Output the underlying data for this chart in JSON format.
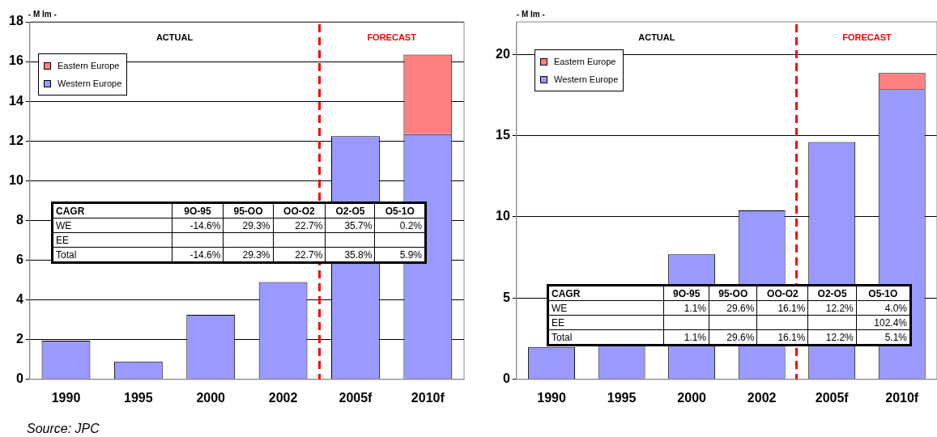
{
  "chart_data": [
    {
      "type": "bar",
      "ylabel": "- M lm -",
      "categories": [
        "1990",
        "1995",
        "2000",
        "2002",
        "2005f",
        "2010f"
      ],
      "stacked": true,
      "series": [
        {
          "name": "Western Europe",
          "color": "#9999ff",
          "values": [
            1.95,
            0.9,
            3.25,
            4.9,
            12.25,
            12.35
          ]
        },
        {
          "name": "Eastern Europe",
          "color": "#ff8080",
          "values": [
            null,
            null,
            null,
            null,
            null,
            4.0
          ]
        }
      ],
      "ylim": [
        0,
        18
      ],
      "yticks": [
        0,
        2,
        4,
        6,
        8,
        10,
        12,
        14,
        16,
        18
      ],
      "grid": "y",
      "legend": "top left",
      "annotations": [
        "ACTUAL",
        "FORECAST",
        "CAGR",
        "9O-95",
        "95-OO",
        "OO-O2",
        "O2-O5",
        "O5-1O",
        "WE",
        "-14.6%",
        "29.3%",
        "22.7%",
        "35.7%",
        "0.2%",
        "EE",
        null,
        null,
        null,
        null,
        null,
        "Total",
        "-14.6%",
        "29.3%",
        "22.7%",
        "35.8%",
        "5.9%",
        "Source: JPC"
      ]
    },
    {
      "type": "bar",
      "ylabel": "- M lm -",
      "categories": [
        "1990",
        "1995",
        "2000",
        "2002",
        "2005f",
        "2010f"
      ],
      "stacked": true,
      "series": [
        {
          "name": "Western Europe",
          "color": "#9999ff",
          "values": [
            2.0,
            2.1,
            7.7,
            10.4,
            14.6,
            17.85
          ]
        },
        {
          "name": "Eastern Europe",
          "color": "#ff8080",
          "values": [
            null,
            null,
            null,
            null,
            null,
            1.0
          ]
        }
      ],
      "ylim": [
        0,
        22
      ],
      "yticks": [
        0,
        5,
        10,
        15,
        20
      ],
      "grid": "y",
      "legend": "top left",
      "annotations": [
        "ACTUAL",
        "FORECAST",
        "CAGR",
        "9O-95",
        "95-OO",
        "OO-O2",
        "O2-O5",
        "O5-1O",
        "WE",
        "1.1%",
        "29.6%",
        "16.1%",
        "12.2%",
        "4.0%",
        "EE",
        null,
        null,
        null,
        null,
        "102.4%",
        "Total",
        "1.1%",
        "29.6%",
        "16.1%",
        "12.2%",
        "5.1%"
      ]
    }
  ]
}
